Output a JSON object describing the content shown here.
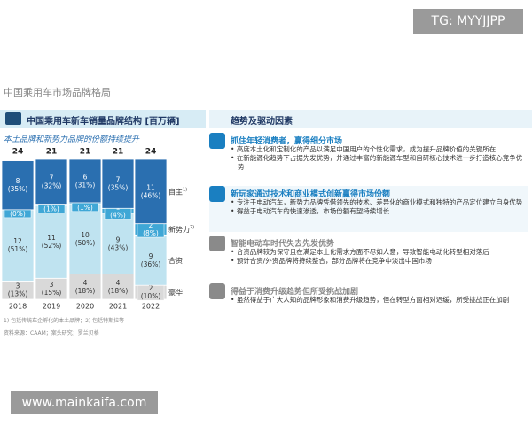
{
  "header": {
    "title": "中国乘用车市场品牌格局"
  },
  "watermarks": [
    "TG: MYYJJPP",
    "www.mainkaifa.com"
  ],
  "chart_data": {
    "type": "bar",
    "stacked": true,
    "title": "中国乘用车新车销量品牌结构 [百万辆]",
    "subtitle": "本土品牌和新势力品牌的份额持续提升",
    "categories": [
      "2018",
      "2019",
      "2020",
      "2021",
      "2022"
    ],
    "totals": [
      24,
      21,
      21,
      21,
      24
    ],
    "ylim": [
      0,
      100
    ],
    "series": [
      {
        "name": "豪华",
        "color": "#d9d9d9",
        "values": [
          3,
          3,
          4,
          4,
          2
        ],
        "share_values": [
          13,
          15,
          18,
          18,
          10
        ],
        "share_labels": [
          "(13%)",
          "(15%)",
          "(18%)",
          "(18%)",
          "(10%)"
        ]
      },
      {
        "name": "合资",
        "color": "#bfe3f0",
        "values": [
          12,
          11,
          10,
          9,
          9
        ],
        "share_values": [
          51,
          52,
          50,
          43,
          36
        ],
        "share_labels": [
          "(51%)",
          "(52%)",
          "(50%)",
          "(43%)",
          "(36%)"
        ]
      },
      {
        "name": "新势力",
        "note": "2)",
        "color": "#3fa7d6",
        "values": [
          0,
          0,
          0,
          1,
          2
        ],
        "share_values": [
          0,
          1,
          1,
          4,
          8
        ],
        "share_labels": [
          "(0%)",
          "(1%)",
          "(1%)",
          "(4%)",
          "(8%)"
        ]
      },
      {
        "name": "自主",
        "note": "1)",
        "color": "#2a6fb0",
        "values": [
          8,
          7,
          6,
          7,
          11
        ],
        "share_values": [
          35,
          32,
          31,
          35,
          46
        ],
        "share_labels": [
          "(35%)",
          "(32%)",
          "(31%)",
          "(35%)",
          "(46%)"
        ]
      }
    ]
  },
  "footnotes": "1) 包括传统车企孵化的本土品牌；2) 包括特斯拉等",
  "source": "资料来源：CAAM；案头研究；罗兰贝格",
  "panel": {
    "title": "趋势及驱动因素",
    "items": [
      {
        "title": "抓住年轻消费者，赢得细分市场",
        "bullets": [
          "高度本土化和定制化的产品以满足中国用户的个性化需求，成为提升品牌价值的关键所在",
          "在新能源化趋势下占据先发优势，并通过丰富的新能源车型和自研核心技术进一步打造核心竞争优势"
        ]
      },
      {
        "title": "新玩家通过技术和商业模式创新赢得市场份额",
        "bullets": [
          "专注于电动汽车，新势力品牌凭借领先的技术、差异化的商业模式和独特的产品定位建立自身优势",
          "得益于电动汽车的快速渗透，市场份额有望持续增长"
        ]
      },
      {
        "title": "智能电动车时代失去先发优势",
        "bullets": [
          "合资品牌较为保守且在满足本土化需求方面不尽如人意，导致智能电动化转型相对落后",
          "预计合资/外资品牌将持续整合，部分品牌将在竞争中淡出中国市场"
        ]
      },
      {
        "title": "得益于消费升级趋势但所受挑战加剧",
        "bullets": [
          "虽然得益于广大人知的品牌形象和消费升级趋势，但在转型方面相对迟缓，所受挑战正在加剧"
        ]
      }
    ]
  }
}
